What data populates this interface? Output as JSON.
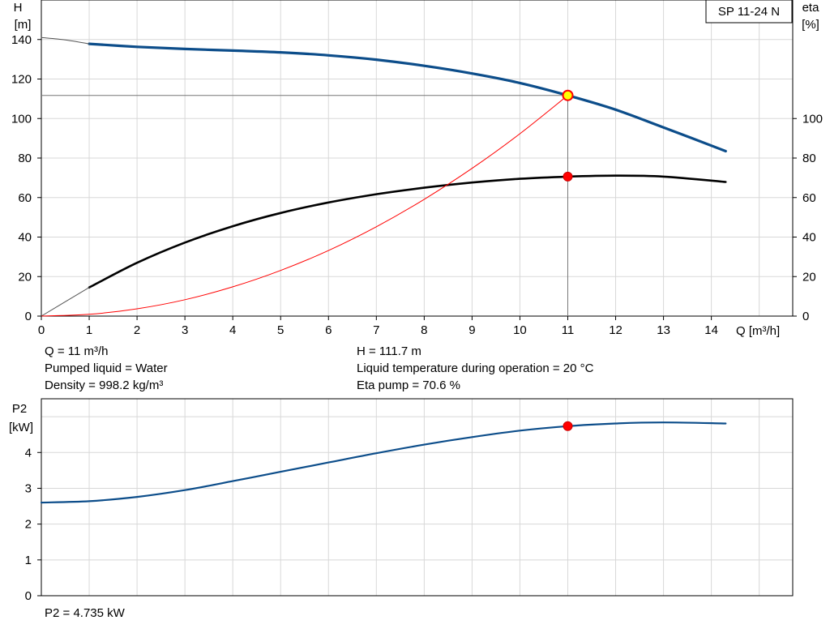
{
  "chart_data": [
    {
      "type": "line",
      "title": "SP 11-24 N",
      "xlabel": "Q [m³/h]",
      "ylabel_left": [
        "H",
        "[m]"
      ],
      "ylabel_right": [
        "eta",
        "[%]"
      ],
      "xlim": [
        0,
        15.7
      ],
      "x_ticks": [
        0,
        1,
        2,
        3,
        4,
        5,
        6,
        7,
        8,
        9,
        10,
        11,
        12,
        13,
        14
      ],
      "ylim_left": [
        0,
        160
      ],
      "y_ticks_left": [
        0,
        20,
        40,
        60,
        80,
        100,
        120,
        140
      ],
      "ylim_right": [
        0,
        160
      ],
      "y_ticks_right": [
        0,
        20,
        40,
        60,
        80,
        100
      ],
      "grid": true,
      "series": [
        {
          "key": "head",
          "color": "#0c4d8a",
          "x": [
            1,
            2,
            3,
            4,
            5,
            6,
            7,
            8,
            9,
            10,
            11,
            12,
            13,
            14.3
          ],
          "y": [
            137.8,
            136.3,
            135.2,
            134.4,
            133.5,
            132,
            129.8,
            126.7,
            122.8,
            118,
            111.7,
            104.5,
            95.5,
            83.5
          ]
        },
        {
          "key": "head-extrapolated",
          "color": "#555555",
          "x": [
            0,
            0.5,
            1
          ],
          "y": [
            141,
            139.8,
            137.8
          ]
        },
        {
          "key": "eta",
          "color": "#000000",
          "x": [
            1,
            2,
            3,
            4,
            5,
            6,
            7,
            8,
            9,
            10,
            11,
            12,
            13,
            14.3
          ],
          "y": [
            14.5,
            27,
            37.2,
            45.5,
            52.2,
            57.5,
            61.7,
            65,
            67.6,
            69.5,
            70.6,
            71.1,
            70.6,
            67.9
          ]
        },
        {
          "key": "eta-extrapolated",
          "color": "#555555",
          "x": [
            0,
            1
          ],
          "y": [
            0,
            14.5
          ]
        },
        {
          "key": "system-curve",
          "color": "#ff0000",
          "x": [
            0,
            1,
            2,
            3,
            4,
            5,
            6,
            7,
            8,
            9,
            10,
            11
          ],
          "y": [
            0,
            0.9,
            3.7,
            8.3,
            14.8,
            23.1,
            33.2,
            45.2,
            59.1,
            74.8,
            92.3,
            111.7
          ]
        }
      ],
      "duty_point": {
        "x": 11,
        "head": 111.7,
        "eta": 70.6
      }
    },
    {
      "type": "line",
      "ylabel": [
        "P2",
        "[kW]"
      ],
      "xlim": [
        0,
        15.7
      ],
      "ylim": [
        0,
        5.5
      ],
      "y_ticks": [
        0,
        1,
        2,
        3,
        4
      ],
      "grid": true,
      "series": [
        {
          "key": "p2",
          "color": "#0c4d8a",
          "x": [
            0,
            1,
            2,
            3,
            4,
            5,
            6,
            7,
            8,
            9,
            10,
            11,
            12,
            13,
            14.3
          ],
          "y": [
            2.6,
            2.64,
            2.76,
            2.95,
            3.2,
            3.46,
            3.72,
            3.98,
            4.22,
            4.43,
            4.61,
            4.735,
            4.81,
            4.84,
            4.81
          ]
        }
      ],
      "duty_point": {
        "x": 11,
        "y": 4.735
      }
    }
  ],
  "operating_info": {
    "q": "Q = 11 m³/h",
    "liquid": "Pumped liquid = Water",
    "density": "Density = 998.2 kg/m³",
    "h": "H = 111.7 m",
    "temp": "Liquid temperature during operation = 20 °C",
    "eta": "Eta pump = 70.6 %",
    "p2": "P2 = 4.735 kW"
  }
}
